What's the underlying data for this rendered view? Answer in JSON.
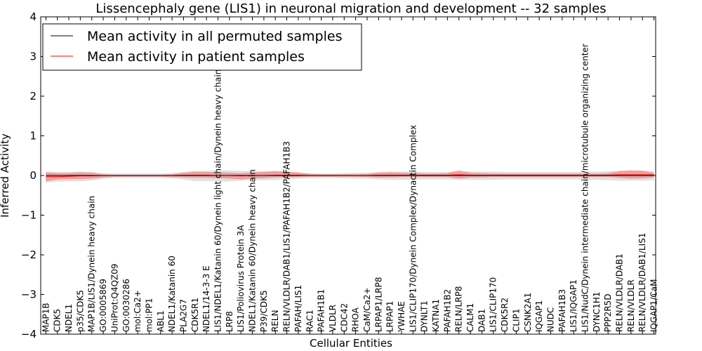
{
  "chart_data": {
    "type": "line",
    "title": "Lissencephaly gene (LIS1) in neuronal migration and development -- 32 samples",
    "xlabel": "Cellular Entities",
    "ylabel": "Inferred Activity",
    "ylim": [
      -4,
      4
    ],
    "yticks": [
      "−4",
      "−3",
      "−2",
      "−1",
      "0",
      "1",
      "2",
      "3",
      "4"
    ],
    "grid": false,
    "legend_position": "top-left",
    "categories": [
      "MAP1B",
      "CDK5",
      "NDEL1",
      "p35/CDK5",
      "MAP1B/LIS1/Dynein heavy chain",
      "GO:0005869",
      "UniProt:Q4QZ09",
      "GO:0030286",
      "mol:Ca2+",
      "mol:PP1",
      "ABL1",
      "NDEL1/Katanin 60",
      "PLA2G7",
      "CDK5R1",
      "NDEL1/14-3-3 E",
      "LIS1/NDEL1/Katanin 60/Dynein light chain/Dynein heavy chain",
      "LRP8",
      "LIS1/Poliovirus Protein 3A",
      "NDEL1/Katanin 60/Dynein heavy chain",
      "P39/CDK5",
      "RELN",
      "RELN/VLDLR/DAB1/LIS1/PAFAH1B2/PAFAH1B3",
      "PAFAH/LIS1",
      "RAC1",
      "PAFAH1B1",
      "VLDLR",
      "CDC42",
      "RHOA",
      "CaM/Ca2+",
      "LRPAP1/LRP8",
      "LRPAP1",
      "YWHAE",
      "LIS1/CLIP170/Dynein Complex/Dynactin Complex",
      "DYNLT1",
      "KATNA1",
      "PAFAH1B2",
      "RELN/LRP8",
      "CALM1",
      "DAB1",
      "LIS1/CLIP170",
      "CDK5R2",
      "CLIP1",
      "CSNK2A1",
      "IQGAP1",
      "NUDC",
      "PAFAH1B3",
      "LIS1/IQGAP1",
      "LIS1/NudC/Dynein intermediate chain/microtubule organizing center",
      "DYNC1H1",
      "PPP2R5D",
      "RELN/VLDLR/DAB1",
      "RELN/VLDLR",
      "RELN/VLDLR/DAB1/LIS1",
      "IQGAP1/CaM"
    ],
    "series": [
      {
        "name": "Mean activity in all permuted samples",
        "color": "#000000",
        "values": [
          0.0,
          0.0,
          0.0,
          0.0,
          0.0,
          0.0,
          0.0,
          0.0,
          0.0,
          0.0,
          0.0,
          0.0,
          0.0,
          0.0,
          0.0,
          0.0,
          0.0,
          0.0,
          0.0,
          0.0,
          0.0,
          0.0,
          0.0,
          0.0,
          0.0,
          0.0,
          0.0,
          0.0,
          0.0,
          0.0,
          0.0,
          0.0,
          0.0,
          0.0,
          0.0,
          0.0,
          0.0,
          0.0,
          0.0,
          0.0,
          0.0,
          0.0,
          0.0,
          0.0,
          0.0,
          0.0,
          0.0,
          0.0,
          0.0,
          0.0,
          0.0,
          0.0,
          0.0,
          0.0
        ],
        "band_low": [
          -0.17,
          -0.16,
          -0.15,
          -0.15,
          -0.13,
          -0.08,
          -0.06,
          -0.06,
          -0.06,
          -0.06,
          -0.06,
          -0.07,
          -0.1,
          -0.14,
          -0.14,
          -0.15,
          -0.15,
          -0.13,
          -0.12,
          -0.12,
          -0.12,
          -0.1,
          -0.08,
          -0.07,
          -0.06,
          -0.06,
          -0.07,
          -0.08,
          -0.08,
          -0.1,
          -0.11,
          -0.11,
          -0.11,
          -0.1,
          -0.1,
          -0.1,
          -0.11,
          -0.11,
          -0.11,
          -0.11,
          -0.1,
          -0.1,
          -0.1,
          -0.1,
          -0.1,
          -0.1,
          -0.1,
          -0.11,
          -0.11,
          -0.12,
          -0.13,
          -0.13,
          -0.13,
          -0.12
        ],
        "band_high": [
          0.1,
          0.09,
          0.09,
          0.1,
          0.09,
          0.06,
          0.05,
          0.05,
          0.05,
          0.05,
          0.05,
          0.06,
          0.09,
          0.12,
          0.12,
          0.13,
          0.13,
          0.12,
          0.11,
          0.11,
          0.11,
          0.09,
          0.07,
          0.06,
          0.05,
          0.05,
          0.06,
          0.07,
          0.07,
          0.09,
          0.1,
          0.1,
          0.1,
          0.09,
          0.09,
          0.09,
          0.1,
          0.1,
          0.1,
          0.1,
          0.09,
          0.09,
          0.09,
          0.09,
          0.09,
          0.09,
          0.09,
          0.1,
          0.1,
          0.11,
          0.12,
          0.12,
          0.12,
          0.11
        ]
      },
      {
        "name": "Mean activity in patient samples",
        "color": "#ff0000",
        "values": [
          -0.03,
          -0.03,
          -0.02,
          -0.01,
          -0.01,
          0.0,
          0.0,
          0.0,
          0.0,
          0.0,
          0.0,
          0.0,
          0.01,
          0.01,
          0.01,
          0.0,
          0.0,
          -0.01,
          0.0,
          0.0,
          0.01,
          0.01,
          0.01,
          0.0,
          0.0,
          0.0,
          0.0,
          0.0,
          0.0,
          0.01,
          0.01,
          0.01,
          0.01,
          0.01,
          0.01,
          0.01,
          0.02,
          0.01,
          0.01,
          0.01,
          0.01,
          0.01,
          0.01,
          0.01,
          0.01,
          0.01,
          0.01,
          0.01,
          0.01,
          0.01,
          0.02,
          0.02,
          0.02,
          0.02
        ],
        "band_low": [
          -0.15,
          -0.1,
          -0.09,
          -0.09,
          -0.08,
          -0.05,
          -0.03,
          -0.03,
          -0.03,
          -0.03,
          -0.03,
          -0.04,
          -0.05,
          -0.06,
          -0.06,
          -0.07,
          -0.08,
          -0.1,
          -0.07,
          -0.07,
          -0.05,
          -0.05,
          -0.04,
          -0.03,
          -0.03,
          -0.03,
          -0.03,
          -0.03,
          -0.04,
          -0.05,
          -0.05,
          -0.04,
          -0.04,
          -0.04,
          -0.04,
          -0.04,
          -0.08,
          -0.05,
          -0.05,
          -0.04,
          -0.04,
          -0.04,
          -0.04,
          -0.04,
          -0.04,
          -0.04,
          -0.04,
          -0.04,
          -0.04,
          -0.04,
          -0.06,
          -0.08,
          -0.07,
          -0.05
        ],
        "band_high": [
          0.08,
          0.06,
          0.06,
          0.08,
          0.07,
          0.03,
          0.02,
          0.02,
          0.02,
          0.02,
          0.02,
          0.03,
          0.07,
          0.09,
          0.09,
          0.08,
          0.07,
          0.06,
          0.08,
          0.09,
          0.11,
          0.1,
          0.08,
          0.04,
          0.03,
          0.03,
          0.03,
          0.03,
          0.04,
          0.07,
          0.08,
          0.07,
          0.06,
          0.05,
          0.05,
          0.06,
          0.13,
          0.07,
          0.06,
          0.05,
          0.05,
          0.05,
          0.05,
          0.05,
          0.05,
          0.05,
          0.05,
          0.05,
          0.05,
          0.06,
          0.11,
          0.13,
          0.12,
          0.07
        ]
      }
    ]
  }
}
